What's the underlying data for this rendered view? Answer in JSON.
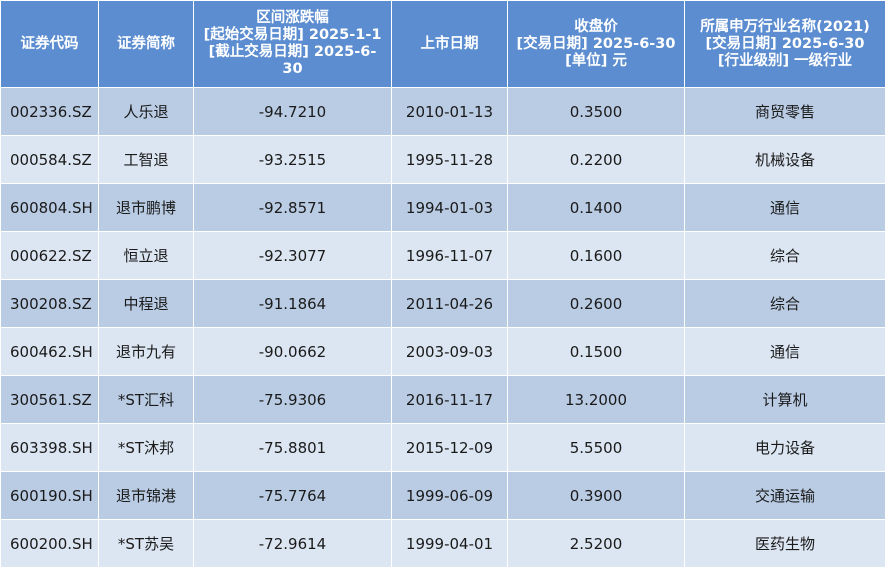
{
  "headers": [
    [
      "证券代码"
    ],
    [
      "证券简称"
    ],
    [
      "区间涨跌幅",
      "[起始交易日期] 2025-1-1",
      "[截止交易日期] 2025-6-",
      "30"
    ],
    [
      "上市日期"
    ],
    [
      "收盘价",
      "[交易日期] 2025-6-30",
      "[单位] 元"
    ],
    [
      "所属申万行业名称(2021)",
      "[交易日期] 2025-6-30",
      "[行业级别] 一级行业"
    ]
  ],
  "rows": [
    [
      "002336.SZ",
      "人乐退",
      "-94.7210",
      "2010-01-13",
      "0.3500",
      "商贸零售"
    ],
    [
      "000584.SZ",
      "工智退",
      "-93.2515",
      "1995-11-28",
      "0.2200",
      "机械设备"
    ],
    [
      "600804.SH",
      "退市鹏博",
      "-92.8571",
      "1994-01-03",
      "0.1400",
      "通信"
    ],
    [
      "000622.SZ",
      "恒立退",
      "-92.3077",
      "1996-11-07",
      "0.1600",
      "综合"
    ],
    [
      "300208.SZ",
      "中程退",
      "-91.1864",
      "2011-04-26",
      "0.2600",
      "综合"
    ],
    [
      "600462.SH",
      "退市九有",
      "-90.0662",
      "2003-09-03",
      "0.1500",
      "通信"
    ],
    [
      "300561.SZ",
      "*ST汇科",
      "-75.9306",
      "2016-11-17",
      "13.2000",
      "计算机"
    ],
    [
      "603398.SH",
      "*ST沐邦",
      "-75.8801",
      "2015-12-09",
      "5.5500",
      "电力设备"
    ],
    [
      "600190.SH",
      "退市锦港",
      "-75.7764",
      "1999-06-09",
      "0.3900",
      "交通运输"
    ],
    [
      "600200.SH",
      "*ST苏吴",
      "-72.9614",
      "1999-04-01",
      "2.5200",
      "医药生物"
    ]
  ],
  "colors": {
    "header_bg": "#5b8dd0",
    "header_text": "#ffffff",
    "row_odd_bg": "#b9cce4",
    "row_even_bg": "#dce6f2",
    "cell_text": "#1a1a1a"
  }
}
